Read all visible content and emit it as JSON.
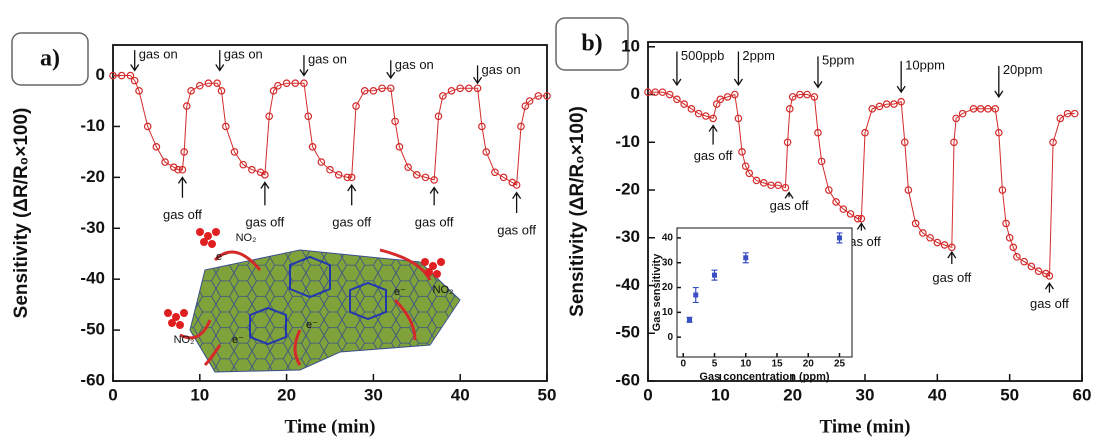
{
  "chart_data": [
    {
      "type": "line",
      "panel_label": "a)",
      "x_label": "Time (min)",
      "y_label": "Sensitivity (ΔR/R₀×100)",
      "color": "#d42a2a",
      "xlim": [
        0,
        50
      ],
      "ylim": [
        -60,
        6
      ],
      "xticks": [
        0,
        10,
        20,
        30,
        40,
        50
      ],
      "yticks": [
        0,
        -10,
        -20,
        -30,
        -40,
        -50,
        -60
      ],
      "x": [
        0,
        1,
        2,
        2.5,
        3,
        4,
        5,
        6,
        7,
        7.5,
        8,
        8.2,
        8.5,
        9,
        10,
        11,
        12,
        12.5,
        13,
        14,
        15,
        16,
        17,
        17.5,
        18,
        18.5,
        19,
        20,
        21,
        22,
        22.5,
        23,
        24,
        25,
        26,
        27,
        27.5,
        28,
        29,
        30,
        31,
        32,
        32.5,
        33,
        34,
        35,
        36,
        37,
        37.5,
        38,
        39,
        40,
        41,
        42,
        42.5,
        43,
        44,
        45,
        46,
        46.5,
        47,
        47.5,
        48,
        49,
        50
      ],
      "values": [
        0,
        0,
        0,
        -1,
        -3,
        -10,
        -14,
        -17,
        -18,
        -18.5,
        -18.5,
        -15,
        -6,
        -3,
        -2,
        -1.5,
        -1.5,
        -3,
        -10,
        -15,
        -17.5,
        -18.5,
        -19,
        -19.5,
        -8,
        -3,
        -2,
        -1.5,
        -1.5,
        -1.5,
        -8,
        -14,
        -17,
        -18.5,
        -19.5,
        -20,
        -20,
        -6,
        -3,
        -3,
        -2.5,
        -2.5,
        -9,
        -14,
        -18,
        -19.5,
        -20,
        -20.5,
        -8,
        -4,
        -3,
        -2.5,
        -2.5,
        -2.5,
        -10,
        -15,
        -19,
        -20,
        -21,
        -21.5,
        -10,
        -6,
        -5,
        -4,
        -4
      ],
      "gas_on_labels": [
        "gas on",
        "gas on",
        "gas on",
        "gas on",
        "gas on"
      ],
      "gas_off_labels": [
        "gas off",
        "gas off",
        "gas off",
        "gas off",
        "gas off"
      ],
      "illustration_labels": [
        "NO₂",
        "NO₂",
        "NO₂",
        "e⁻",
        "e⁻",
        "e⁻",
        "e⁻"
      ]
    },
    {
      "type": "line",
      "panel_label": "b)",
      "x_label": "Time (min)",
      "y_label": "Sensitivity (ΔR/R₀×100)",
      "color": "#d42a2a",
      "xlim": [
        0,
        60
      ],
      "ylim": [
        -60,
        11
      ],
      "xticks": [
        0,
        10,
        20,
        30,
        40,
        50,
        60
      ],
      "yticks": [
        10,
        0,
        -10,
        -20,
        -30,
        -40,
        -50,
        -60
      ],
      "x": [
        0,
        1,
        2,
        3,
        4,
        5,
        6,
        7,
        8,
        9,
        9.5,
        10,
        11,
        12,
        12.5,
        13,
        13.5,
        14,
        15,
        16,
        17,
        18,
        19,
        19.3,
        19.6,
        20,
        21,
        22,
        23,
        23.5,
        24,
        25,
        26,
        27,
        28,
        29,
        29.5,
        30,
        31,
        32,
        33,
        34,
        35,
        35.5,
        36,
        37,
        38,
        39,
        40,
        41,
        42,
        42.3,
        42.6,
        43.5,
        45,
        46,
        47,
        48,
        48.5,
        49,
        49.5,
        50,
        50.5,
        51,
        52,
        53,
        54,
        55,
        55.5,
        56,
        57,
        58,
        59
      ],
      "values": [
        0.5,
        0.5,
        0.5,
        0,
        -1,
        -2,
        -3,
        -4,
        -4.5,
        -5,
        -2,
        -1,
        -0.5,
        0,
        -5,
        -12,
        -15,
        -16.5,
        -18,
        -18.5,
        -19,
        -19,
        -19.5,
        -10,
        -3,
        -0.5,
        0,
        0,
        -0.5,
        -8,
        -14,
        -20,
        -22.5,
        -24,
        -25,
        -26,
        -26,
        -8,
        -3,
        -2.5,
        -2,
        -2,
        -1.5,
        -10,
        -20,
        -27,
        -29,
        -30,
        -31,
        -31.5,
        -32,
        -10,
        -5,
        -4,
        -3,
        -3,
        -3,
        -3,
        -8,
        -20,
        -27,
        -30,
        -32,
        -34,
        -35,
        -36,
        -37,
        -37.5,
        -38,
        -10,
        -5,
        -4,
        -4
      ],
      "gas_on_labels": [
        "500ppb",
        "2ppm",
        "5ppm",
        "10ppm",
        "20ppm"
      ],
      "gas_off_labels": [
        "gas off",
        "gas off",
        "gas off",
        "gas off",
        "gas off"
      ]
    },
    {
      "type": "scatter",
      "x_label": "Gas concentration (ppm)",
      "y_label": "Gas sensitivity",
      "color": "#3a4fc4",
      "xlim": [
        -1,
        27
      ],
      "ylim": [
        -8,
        44
      ],
      "xticks": [
        0,
        5,
        10,
        15,
        20,
        25
      ],
      "yticks": [
        0,
        10,
        20,
        30,
        40
      ],
      "x": [
        1,
        2,
        5,
        10,
        25
      ],
      "values": [
        7,
        17,
        25,
        32,
        40
      ],
      "errors": [
        1,
        3,
        2,
        2,
        2
      ]
    }
  ]
}
